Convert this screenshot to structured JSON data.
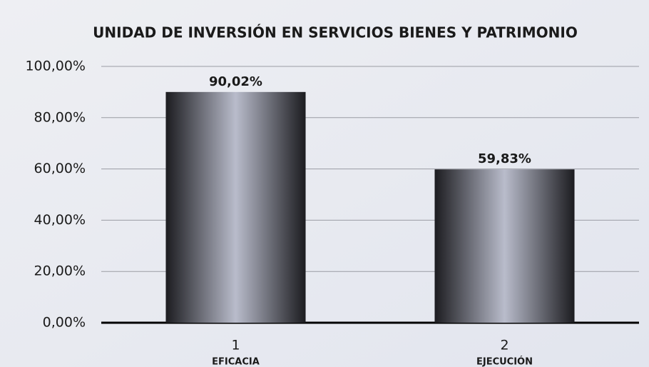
{
  "chart_data": {
    "type": "bar",
    "title": "UNIDAD DE INVERSIÓN EN SERVICIOS BIENES Y PATRIMONIO",
    "categories": [
      "1",
      "2"
    ],
    "category_labels": [
      "EFICACIA",
      "EJECUCIÓN"
    ],
    "values": [
      90.02,
      59.83
    ],
    "value_labels": [
      "90,02%",
      "59,83%"
    ],
    "color": "#2a2a2e",
    "ylim": [
      0,
      100
    ],
    "yticks": [
      {
        "value": 0,
        "label": "0,00%"
      },
      {
        "value": 20,
        "label": "20,00%"
      },
      {
        "value": 40,
        "label": "40,00%"
      },
      {
        "value": 60,
        "label": "60,00%"
      },
      {
        "value": 80,
        "label": "80,00%"
      },
      {
        "value": 100,
        "label": "100,00%"
      }
    ],
    "grid": true
  }
}
